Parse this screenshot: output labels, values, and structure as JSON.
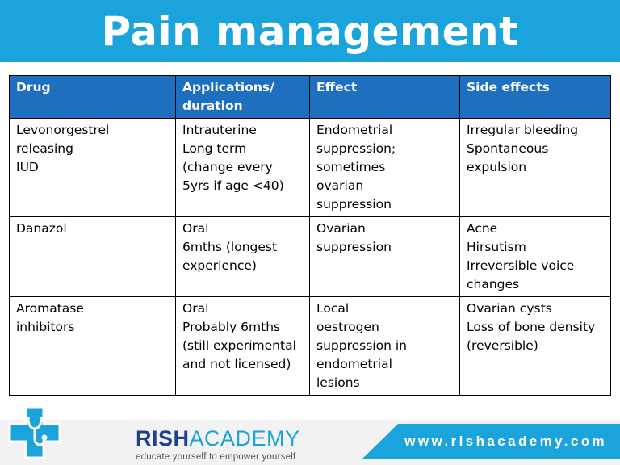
{
  "slide": {
    "title": "Pain management"
  },
  "table": {
    "headers": [
      {
        "lines": [
          "Drug"
        ]
      },
      {
        "lines": [
          "Applications/",
          "duration"
        ]
      },
      {
        "lines": [
          "Effect"
        ]
      },
      {
        "lines": [
          "Side effects"
        ]
      }
    ],
    "rows": [
      {
        "cells": [
          {
            "lines": [
              "Levonorgestrel releasing",
              "IUD"
            ]
          },
          {
            "lines": [
              "Intrauterine",
              "Long term",
              "(change every",
              "5yrs if age <40)"
            ]
          },
          {
            "lines": [
              "Endometrial",
              "suppression;",
              "sometimes",
              "ovarian",
              "suppression"
            ]
          },
          {
            "lines": [
              "Irregular bleeding",
              "Spontaneous",
              "expulsion"
            ]
          }
        ]
      },
      {
        "cells": [
          {
            "lines": [
              "Danazol"
            ]
          },
          {
            "lines": [
              "Oral",
              "6mths (longest",
              "experience)"
            ]
          },
          {
            "lines": [
              "Ovarian",
              "suppression"
            ]
          },
          {
            "lines": [
              "Acne",
              "Hirsutism",
              "Irreversible voice",
              "changes"
            ]
          }
        ]
      },
      {
        "cells": [
          {
            "lines": [
              "Aromatase",
              "inhibitors"
            ]
          },
          {
            "lines": [
              "Oral",
              "Probably 6mths",
              "(still experimental",
              "and not licensed)"
            ]
          },
          {
            "lines": [
              "Local",
              "oestrogen",
              "suppression in",
              "endometrial",
              "lesions"
            ]
          },
          {
            "lines": [
              "Ovarian cysts",
              "Loss of bone density",
              "(reversible)"
            ]
          }
        ]
      }
    ]
  },
  "footer": {
    "brand_part1": "RISH",
    "brand_part2": "ACADEMY",
    "tagline": "educate yourself to empower yourself",
    "url": "www.rishacademy.com",
    "logo_icon": "medical-cross-stethoscope-icon"
  },
  "colors": {
    "title_bar": "#1ba3dc",
    "table_header": "#1f6fc1",
    "brand_dark": "#1f3f8f",
    "brand_light": "#1ba3dc"
  }
}
